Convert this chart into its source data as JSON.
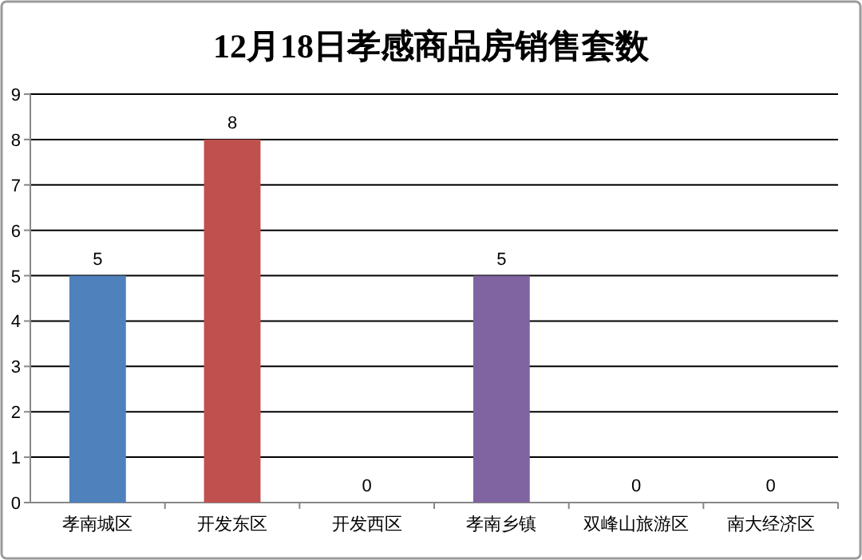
{
  "chart_data": {
    "type": "bar",
    "title": "12月18日孝感商品房销售套数",
    "categories": [
      "孝南城区",
      "开发东区",
      "开发西区",
      "孝南乡镇",
      "双峰山旅游区",
      "南大经济区"
    ],
    "values": [
      5,
      8,
      0,
      5,
      0,
      0
    ],
    "colors": [
      "#4f81bd",
      "#c0504d",
      "#9bbb59",
      "#8064a2",
      "#4bacc6",
      "#f79646"
    ],
    "ylim": [
      0,
      9
    ],
    "yticks": [
      0,
      1,
      2,
      3,
      4,
      5,
      6,
      7,
      8,
      9
    ],
    "grid": "y",
    "data_labels": true
  }
}
